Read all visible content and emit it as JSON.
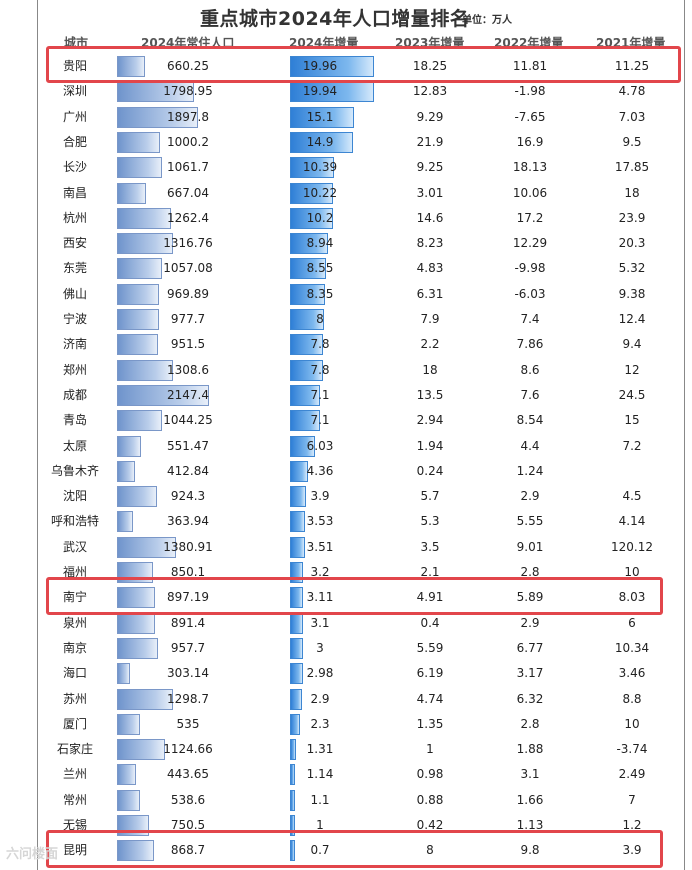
{
  "title": "重点城市2024年人口增量排名",
  "unit_label": "单位：万人",
  "watermark": "六问楼面",
  "columns": [
    "城市",
    "2024年常住人口",
    "2024年增量",
    "2023年增量",
    "2022年增量",
    "2021年增量"
  ],
  "rows": [
    {
      "city": "贵阳",
      "pop": "660.25",
      "inc": "19.96",
      "y23": "18.25",
      "y22": "11.81",
      "y21": "11.25"
    },
    {
      "city": "深圳",
      "pop": "1798.95",
      "inc": "19.94",
      "y23": "12.83",
      "y22": "-1.98",
      "y21": "4.78"
    },
    {
      "city": "广州",
      "pop": "1897.8",
      "inc": "15.1",
      "y23": "9.29",
      "y22": "-7.65",
      "y21": "7.03"
    },
    {
      "city": "合肥",
      "pop": "1000.2",
      "inc": "14.9",
      "y23": "21.9",
      "y22": "16.9",
      "y21": "9.5"
    },
    {
      "city": "长沙",
      "pop": "1061.7",
      "inc": "10.39",
      "y23": "9.25",
      "y22": "18.13",
      "y21": "17.85"
    },
    {
      "city": "南昌",
      "pop": "667.04",
      "inc": "10.22",
      "y23": "3.01",
      "y22": "10.06",
      "y21": "18"
    },
    {
      "city": "杭州",
      "pop": "1262.4",
      "inc": "10.2",
      "y23": "14.6",
      "y22": "17.2",
      "y21": "23.9"
    },
    {
      "city": "西安",
      "pop": "1316.76",
      "inc": "8.94",
      "y23": "8.23",
      "y22": "12.29",
      "y21": "20.3"
    },
    {
      "city": "东莞",
      "pop": "1057.08",
      "inc": "8.55",
      "y23": "4.83",
      "y22": "-9.98",
      "y21": "5.32"
    },
    {
      "city": "佛山",
      "pop": "969.89",
      "inc": "8.35",
      "y23": "6.31",
      "y22": "-6.03",
      "y21": "9.38"
    },
    {
      "city": "宁波",
      "pop": "977.7",
      "inc": "8",
      "y23": "7.9",
      "y22": "7.4",
      "y21": "12.4"
    },
    {
      "city": "济南",
      "pop": "951.5",
      "inc": "7.8",
      "y23": "2.2",
      "y22": "7.86",
      "y21": "9.4"
    },
    {
      "city": "郑州",
      "pop": "1308.6",
      "inc": "7.8",
      "y23": "18",
      "y22": "8.6",
      "y21": "12"
    },
    {
      "city": "成都",
      "pop": "2147.4",
      "inc": "7.1",
      "y23": "13.5",
      "y22": "7.6",
      "y21": "24.5"
    },
    {
      "city": "青岛",
      "pop": "1044.25",
      "inc": "7.1",
      "y23": "2.94",
      "y22": "8.54",
      "y21": "15"
    },
    {
      "city": "太原",
      "pop": "551.47",
      "inc": "6.03",
      "y23": "1.94",
      "y22": "4.4",
      "y21": "7.2"
    },
    {
      "city": "乌鲁木齐",
      "pop": "412.84",
      "inc": "4.36",
      "y23": "0.24",
      "y22": "1.24",
      "y21": ""
    },
    {
      "city": "沈阳",
      "pop": "924.3",
      "inc": "3.9",
      "y23": "5.7",
      "y22": "2.9",
      "y21": "4.5"
    },
    {
      "city": "呼和浩特",
      "pop": "363.94",
      "inc": "3.53",
      "y23": "5.3",
      "y22": "5.55",
      "y21": "4.14"
    },
    {
      "city": "武汉",
      "pop": "1380.91",
      "inc": "3.51",
      "y23": "3.5",
      "y22": "9.01",
      "y21": "120.12"
    },
    {
      "city": "福州",
      "pop": "850.1",
      "inc": "3.2",
      "y23": "2.1",
      "y22": "2.8",
      "y21": "10"
    },
    {
      "city": "南宁",
      "pop": "897.19",
      "inc": "3.11",
      "y23": "4.91",
      "y22": "5.89",
      "y21": "8.03"
    },
    {
      "city": "泉州",
      "pop": "891.4",
      "inc": "3.1",
      "y23": "0.4",
      "y22": "2.9",
      "y21": "6"
    },
    {
      "city": "南京",
      "pop": "957.7",
      "inc": "3",
      "y23": "5.59",
      "y22": "6.77",
      "y21": "10.34"
    },
    {
      "city": "海口",
      "pop": "303.14",
      "inc": "2.98",
      "y23": "6.19",
      "y22": "3.17",
      "y21": "3.46"
    },
    {
      "city": "苏州",
      "pop": "1298.7",
      "inc": "2.9",
      "y23": "4.74",
      "y22": "6.32",
      "y21": "8.8"
    },
    {
      "city": "厦门",
      "pop": "535",
      "inc": "2.3",
      "y23": "1.35",
      "y22": "2.8",
      "y21": "10"
    },
    {
      "city": "石家庄",
      "pop": "1124.66",
      "inc": "1.31",
      "y23": "1",
      "y22": "1.88",
      "y21": "-3.74"
    },
    {
      "city": "兰州",
      "pop": "443.65",
      "inc": "1.14",
      "y23": "0.98",
      "y22": "3.1",
      "y21": "2.49"
    },
    {
      "city": "常州",
      "pop": "538.6",
      "inc": "1.1",
      "y23": "0.88",
      "y22": "1.66",
      "y21": "7"
    },
    {
      "city": "无锡",
      "pop": "750.5",
      "inc": "1",
      "y23": "0.42",
      "y22": "1.13",
      "y21": "1.2"
    },
    {
      "city": "昆明",
      "pop": "868.7",
      "inc": "0.7",
      "y23": "8",
      "y22": "9.8",
      "y21": "3.9"
    }
  ],
  "highlighted_cities": [
    "贵阳",
    "南宁",
    "昆明"
  ],
  "colors": {
    "highlight": "#e2464b",
    "pop_bar": "#7a97c8",
    "inc_bar": "#3d86d2"
  }
}
